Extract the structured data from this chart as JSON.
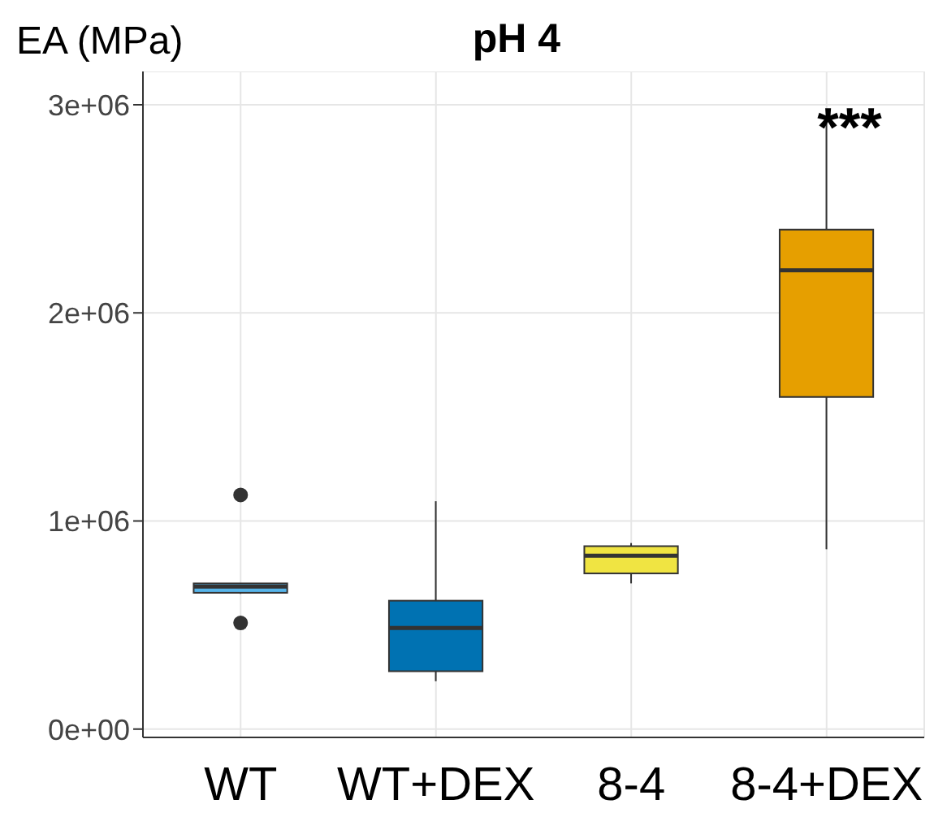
{
  "chart_data": {
    "type": "box",
    "title": "pH 4",
    "ylabel": "EA (MPa)",
    "categories": [
      "WT",
      "WT+DEX",
      "8-4",
      "8-4+DEX"
    ],
    "colors": [
      "#56b4e9",
      "#0072b2",
      "#f0e442",
      "#e69f00"
    ],
    "boxes": [
      {
        "low": 650000,
        "q1": 655000,
        "median": 685000,
        "q3": 700000,
        "high": 700000,
        "outliers": [
          1125000,
          510000
        ]
      },
      {
        "low": 230000,
        "q1": 278000,
        "median": 486000,
        "q3": 617000,
        "high": 1095000
      },
      {
        "low": 700000,
        "q1": 748000,
        "median": 833000,
        "q3": 879000,
        "high": 894000
      },
      {
        "low": 864000,
        "q1": 1596000,
        "median": 2205000,
        "q3": 2400000,
        "high": 2910000
      }
    ],
    "ylim": [
      -40000,
      3160000
    ],
    "yticks": [
      {
        "value": 0,
        "label": "0e+00"
      },
      {
        "value": 1000000,
        "label": "1e+06"
      },
      {
        "value": 2000000,
        "label": "2e+06"
      },
      {
        "value": 3000000,
        "label": "3e+06"
      }
    ],
    "grid": true,
    "annotations": [
      "***"
    ]
  }
}
